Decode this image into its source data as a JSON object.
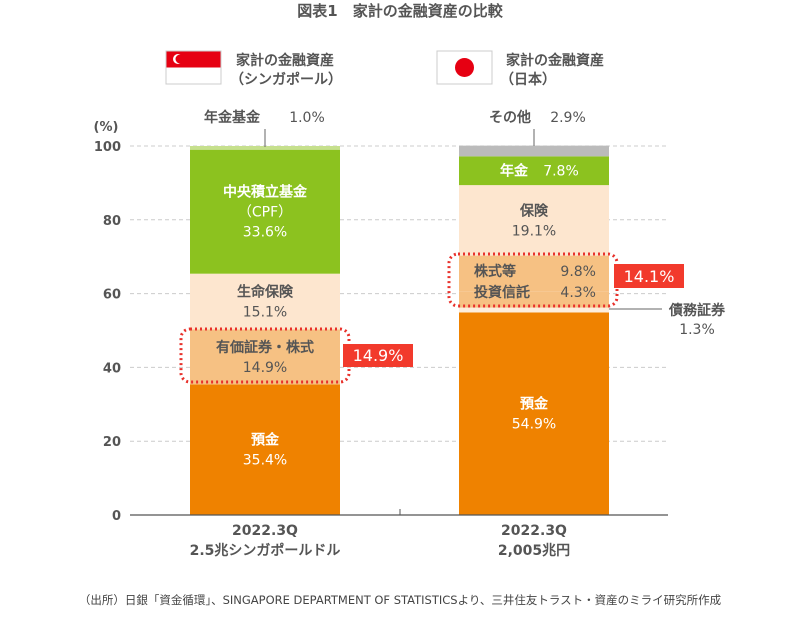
{
  "title": "図表1　家計の金融資産の比較",
  "legend": [
    {
      "line1": "家計の金融資産",
      "line2": "（シンガポール）",
      "flag": "singapore-flag"
    },
    {
      "line1": "家計の金融資産",
      "line2": "（日本）",
      "flag": "japan-flag"
    }
  ],
  "source": "（出所）日銀「資金循環」、SINGAPORE DEPARTMENT OF STATISTICSより、三井住友トラスト・資産のミライ研究所作成",
  "chart_data": {
    "type": "bar",
    "stacked": true,
    "ylabel": "(%)",
    "ylim": [
      0,
      100
    ],
    "yticks": [
      "0",
      "20",
      "40",
      "60",
      "80",
      "100"
    ],
    "grid": true,
    "categories": [
      {
        "line1": "2022.3Q",
        "line2": "2.5兆シンガポールドル"
      },
      {
        "line1": "2022.3Q",
        "line2": "2,005兆円"
      }
    ],
    "bars": [
      {
        "segments": [
          {
            "name": "預金",
            "value": 35.4,
            "label": "35.4%",
            "color": "#ef8200",
            "text": "white"
          },
          {
            "name": "有価証券・株式",
            "value": 14.9,
            "label": "14.9%",
            "color": "#f6c183",
            "text": "dark"
          },
          {
            "name": "生命保険",
            "value": 15.1,
            "label": "15.1%",
            "color": "#fde6cf",
            "text": "dark"
          },
          {
            "name": "中央積立基金",
            "name2": "（CPF）",
            "value": 33.6,
            "label": "33.6%",
            "color": "#8cc21f",
            "text": "white"
          },
          {
            "name": "年金基金",
            "value": 1.0,
            "label": "1.0%",
            "color": "#c6e08d",
            "outside": true
          }
        ],
        "highlight": "14.9%"
      },
      {
        "segments": [
          {
            "name": "預金",
            "value": 54.9,
            "label": "54.9%",
            "color": "#ef8200",
            "text": "white"
          },
          {
            "name": "債務証券",
            "value": 1.3,
            "label": "1.3%",
            "color": "#fdeedd",
            "outside": true
          },
          {
            "name": "投資信託",
            "value": 4.3,
            "label": "4.3%",
            "color": "#f6c183",
            "grouped": true
          },
          {
            "name": "株式等",
            "value": 9.8,
            "label": "9.8%",
            "color": "#f6c183",
            "grouped": true
          },
          {
            "name": "保険",
            "value": 19.1,
            "label": "19.1%",
            "color": "#fde6cf",
            "text": "dark"
          },
          {
            "name": "年金",
            "value": 7.8,
            "label": "7.8%",
            "color": "#8cc21f",
            "text": "white",
            "inline": true
          },
          {
            "name": "その他",
            "value": 2.9,
            "label": "2.9%",
            "color": "#bbbbbb",
            "outside": true
          }
        ],
        "highlight": "14.1%"
      }
    ]
  }
}
